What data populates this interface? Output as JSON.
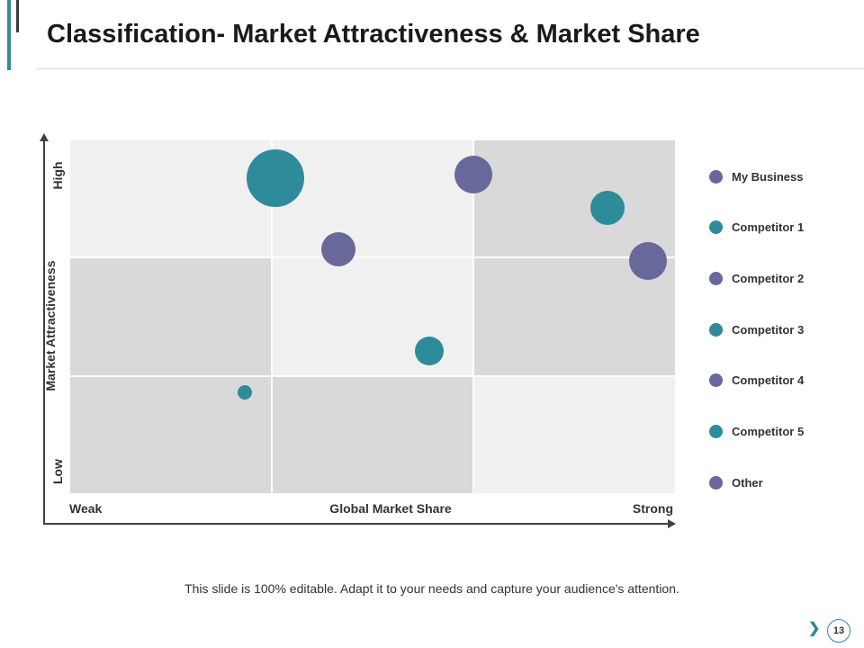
{
  "slide": {
    "title": "Classification- Market Attractiveness & Market Share",
    "footer_note": "This slide is 100% editable. Adapt it to your needs and capture your audience's attention.",
    "page_number": "13",
    "nav_next_icon": "❯"
  },
  "colors": {
    "teal": "#2e8b9a",
    "slate": "#68689a",
    "cell_light": "#f0f0f0",
    "cell_dark": "#d9d9d9"
  },
  "chart_data": {
    "type": "scatter",
    "variant": "bubble",
    "xlabel": "Global Market Share",
    "ylabel": "Market Attractiveness",
    "x_tick_labels": {
      "low": "Weak",
      "high": "Strong"
    },
    "y_tick_labels": {
      "low": "Low",
      "high": "High"
    },
    "xlim": [
      0,
      3
    ],
    "ylim": [
      0,
      3
    ],
    "grid_shading": [
      [
        "light",
        "light",
        "dark"
      ],
      [
        "dark",
        "light",
        "dark"
      ],
      [
        "dark",
        "dark",
        "light"
      ]
    ],
    "points": [
      {
        "x": 1.02,
        "y": 2.67,
        "size": 32,
        "color": "teal"
      },
      {
        "x": 2.0,
        "y": 2.7,
        "size": 21,
        "color": "slate"
      },
      {
        "x": 2.66,
        "y": 2.42,
        "size": 19,
        "color": "teal"
      },
      {
        "x": 1.33,
        "y": 2.07,
        "size": 19,
        "color": "slate"
      },
      {
        "x": 2.86,
        "y": 1.97,
        "size": 21,
        "color": "slate"
      },
      {
        "x": 1.78,
        "y": 1.21,
        "size": 16,
        "color": "teal"
      },
      {
        "x": 0.87,
        "y": 0.86,
        "size": 8,
        "color": "teal"
      }
    ],
    "legend": [
      {
        "label": "My Business",
        "color": "slate"
      },
      {
        "label": "Competitor 1",
        "color": "teal"
      },
      {
        "label": "Competitor 2",
        "color": "slate"
      },
      {
        "label": "Competitor 3",
        "color": "teal"
      },
      {
        "label": "Competitor 4",
        "color": "slate"
      },
      {
        "label": "Competitor 5",
        "color": "teal"
      },
      {
        "label": "Other",
        "color": "slate"
      }
    ],
    "legend_position": "right"
  }
}
